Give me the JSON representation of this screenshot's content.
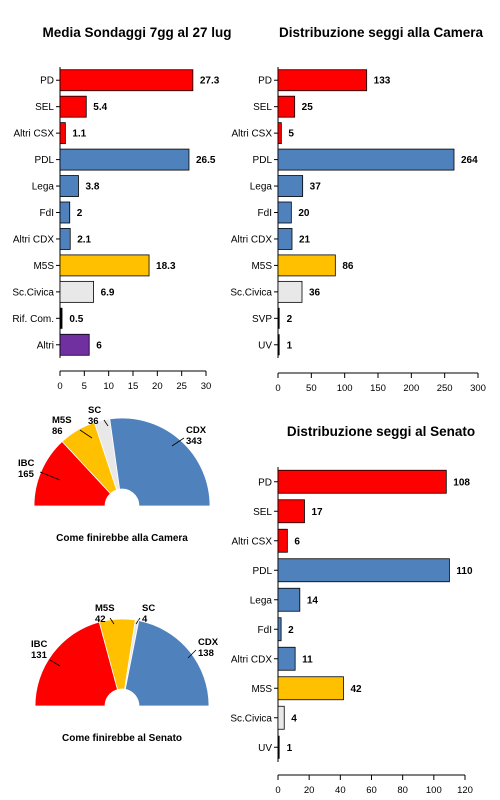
{
  "colors": {
    "csx": "#ff0000",
    "cdx": "#4f81bd",
    "m5s": "#ffc000",
    "sc": "#e8e8e8",
    "rif": "#c07a2a",
    "altri": "#7030a0",
    "svp": "#888888",
    "uv": "#888888"
  },
  "chart_data": [
    {
      "id": "sondaggi",
      "type": "bar",
      "orientation": "horizontal",
      "title": "Media Sondaggi 7gg al 27 lug",
      "categories": [
        "PD",
        "SEL",
        "Altri CSX",
        "PDL",
        "Lega",
        "FdI",
        "Altri CDX",
        "M5S",
        "Sc.Civica",
        "Rif. Com.",
        "Altri"
      ],
      "values": [
        27.3,
        5.4,
        1.1,
        26.5,
        3.8,
        2,
        2.1,
        18.3,
        6.9,
        0.5,
        6
      ],
      "value_labels": [
        "27.3",
        "5.4",
        "1.1",
        "26.5",
        "3.8",
        "2",
        "2.1",
        "18.3",
        "6.9",
        "0.5",
        "6"
      ],
      "colors": [
        "csx",
        "csx",
        "csx",
        "cdx",
        "cdx",
        "cdx",
        "cdx",
        "m5s",
        "sc",
        "rif",
        "altri"
      ],
      "xlim": [
        0,
        30
      ],
      "xticks": [
        "0",
        "5",
        "10",
        "15",
        "20",
        "25",
        "30"
      ],
      "xtick_values": [
        0,
        5,
        10,
        15,
        20,
        25,
        30
      ]
    },
    {
      "id": "camera",
      "type": "bar",
      "orientation": "horizontal",
      "title": "Distribuzione seggi alla Camera",
      "categories": [
        "PD",
        "SEL",
        "Altri CSX",
        "PDL",
        "Lega",
        "FdI",
        "Altri CDX",
        "M5S",
        "Sc.Civica",
        "SVP",
        "UV"
      ],
      "values": [
        133,
        25,
        5,
        264,
        37,
        20,
        21,
        86,
        36,
        2,
        1
      ],
      "value_labels": [
        "133",
        "25",
        "5",
        "264",
        "37",
        "20",
        "21",
        "86",
        "36",
        "2",
        "1"
      ],
      "colors": [
        "csx",
        "csx",
        "csx",
        "cdx",
        "cdx",
        "cdx",
        "cdx",
        "m5s",
        "sc",
        "svp",
        "uv"
      ],
      "xlim": [
        0,
        300
      ],
      "xticks": [
        "0",
        "50",
        "100",
        "150",
        "200",
        "250",
        "300"
      ],
      "xtick_values": [
        0,
        50,
        100,
        150,
        200,
        250,
        300
      ]
    },
    {
      "id": "senato",
      "type": "bar",
      "orientation": "horizontal",
      "title": "Distribuzione seggi al Senato",
      "categories": [
        "PD",
        "SEL",
        "Altri CSX",
        "PDL",
        "Lega",
        "FdI",
        "Altri CDX",
        "M5S",
        "Sc.Civica",
        "UV"
      ],
      "values": [
        108,
        17,
        6,
        110,
        14,
        2,
        11,
        42,
        4,
        1
      ],
      "value_labels": [
        "108",
        "17",
        "6",
        "110",
        "14",
        "2",
        "11",
        "42",
        "4",
        "1"
      ],
      "colors": [
        "csx",
        "csx",
        "csx",
        "cdx",
        "cdx",
        "cdx",
        "cdx",
        "m5s",
        "sc",
        "uv"
      ],
      "xlim": [
        0,
        120
      ],
      "xticks": [
        "0",
        "20",
        "40",
        "60",
        "80",
        "100",
        "120"
      ],
      "xtick_values": [
        0,
        20,
        40,
        60,
        80,
        100,
        120
      ]
    },
    {
      "id": "emiciclo_camera",
      "type": "pie",
      "subtype": "semicircle",
      "caption": "Come finirebbe alla Camera",
      "slices": [
        {
          "name": "IBC",
          "value": 165,
          "label": "165",
          "color": "csx"
        },
        {
          "name": "M5S",
          "value": 86,
          "label": "86",
          "color": "m5s"
        },
        {
          "name": "SC",
          "value": 36,
          "label": "36",
          "color": "sc"
        },
        {
          "name": "CDX",
          "value": 343,
          "label": "343",
          "color": "cdx"
        }
      ]
    },
    {
      "id": "emiciclo_senato",
      "type": "pie",
      "subtype": "semicircle",
      "caption": "Come finirebbe al Senato",
      "slices": [
        {
          "name": "IBC",
          "value": 131,
          "label": "131",
          "color": "csx"
        },
        {
          "name": "M5S",
          "value": 42,
          "label": "42",
          "color": "m5s"
        },
        {
          "name": "SC",
          "value": 4,
          "label": "4",
          "color": "sc"
        },
        {
          "name": "CDX",
          "value": 138,
          "label": "138",
          "color": "cdx"
        }
      ]
    }
  ]
}
